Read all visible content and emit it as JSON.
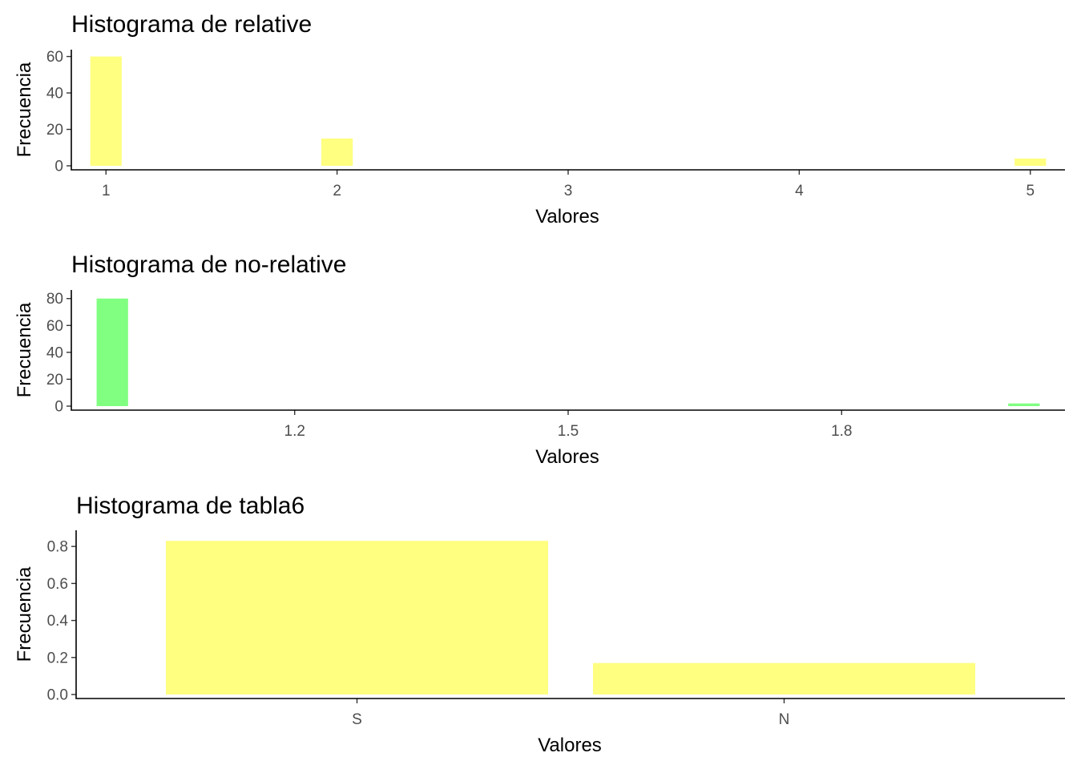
{
  "colors": {
    "yellow": "#FFFF80",
    "green": "#80FF80"
  },
  "chart_data": [
    {
      "type": "bar",
      "title": "Histograma de relative",
      "xlabel": "Valores",
      "ylabel": "Frecuencia",
      "x_ticks": [
        "1",
        "2",
        "3",
        "4",
        "5"
      ],
      "y_ticks": [
        "0",
        "20",
        "40",
        "60"
      ],
      "xlim": [
        0.85,
        5.15
      ],
      "ylim": [
        0,
        62
      ],
      "bar_width": 0.136,
      "color": "#FFFF80",
      "bars": [
        {
          "x": 1,
          "value": 60
        },
        {
          "x": 2,
          "value": 15
        },
        {
          "x": 5,
          "value": 4
        }
      ],
      "grid": false
    },
    {
      "type": "bar",
      "title": "Histograma de no-relative",
      "xlabel": "Valores",
      "ylabel": "Frecuencia",
      "x_ticks": [
        "1.2",
        "1.5",
        "1.8"
      ],
      "y_ticks": [
        "0",
        "20",
        "40",
        "60",
        "80"
      ],
      "xlim": [
        0.955,
        2.045
      ],
      "ylim": [
        0,
        84
      ],
      "bar_width": 0.0345,
      "color": "#80FF80",
      "bars": [
        {
          "x": 1,
          "value": 80
        },
        {
          "x": 2,
          "value": 2
        }
      ],
      "grid": false
    },
    {
      "type": "bar",
      "title": "Histograma de tabla6",
      "xlabel": "Valores",
      "ylabel": "Frecuencia",
      "categories": [
        "S",
        "N"
      ],
      "y_ticks": [
        "0.0",
        "0.2",
        "0.4",
        "0.6",
        "0.8"
      ],
      "ylim": [
        0,
        0.87
      ],
      "color": "#FFFF80",
      "values": [
        0.83,
        0.17
      ],
      "grid": false
    }
  ]
}
